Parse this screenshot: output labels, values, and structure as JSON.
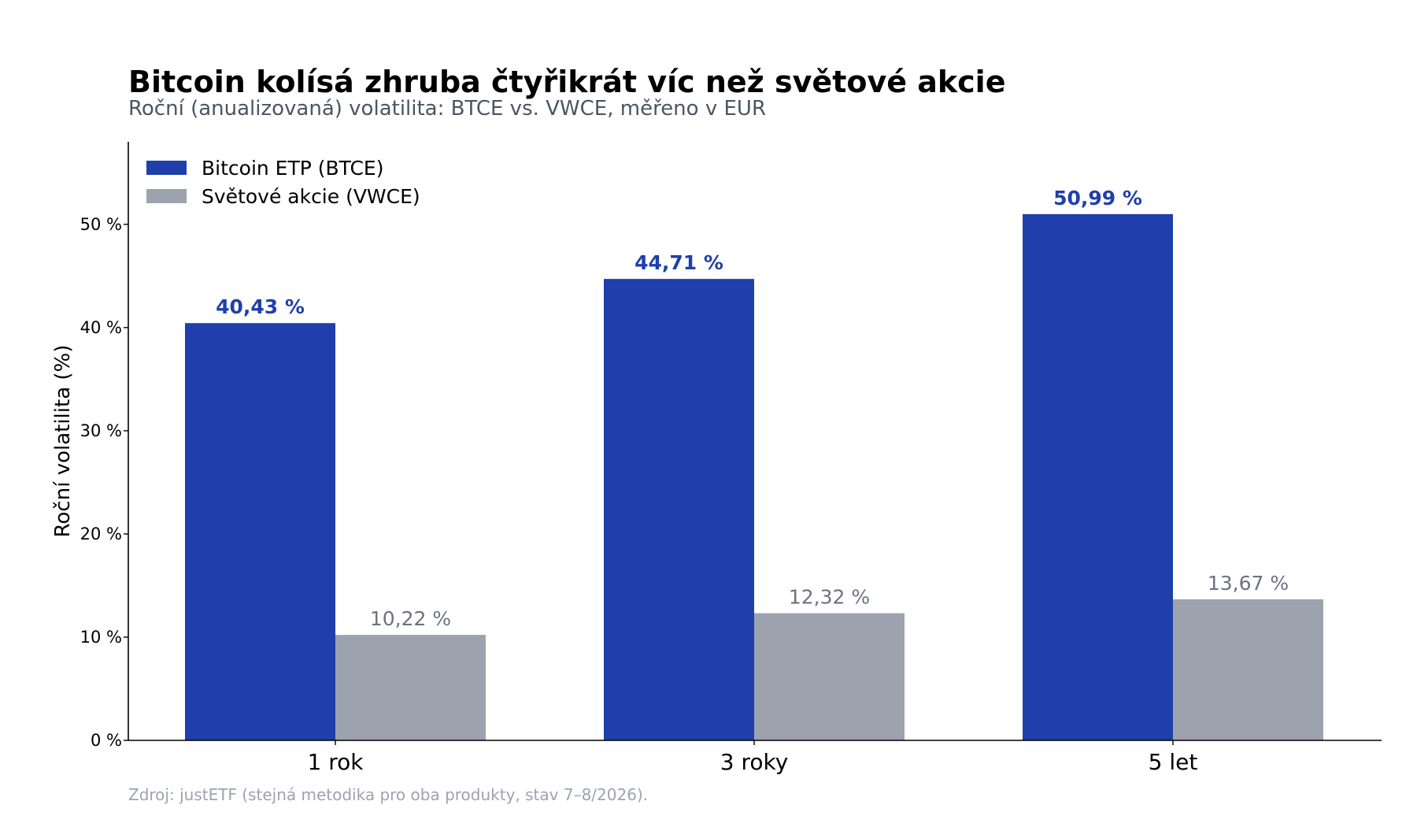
{
  "title": "Bitcoin kolísá zhruba čtyřikrát víc než světové akcie",
  "subtitle": "Roční (anualizovaná) volatilita: BTCE vs. VWCE, měřeno v EUR",
  "source": "Zdroj: justETF (stejná metodika pro oba produkty, stav 7–8/2026).",
  "chart_data": {
    "type": "bar",
    "categories": [
      "1 rok",
      "3 roky",
      "5 let"
    ],
    "ylabel": "Roční volatilita (%)",
    "ylim": [
      0,
      58
    ],
    "yticks": [
      {
        "value": 0,
        "label": "0 %"
      },
      {
        "value": 10,
        "label": "10 %"
      },
      {
        "value": 20,
        "label": "20 %"
      },
      {
        "value": 30,
        "label": "30 %"
      },
      {
        "value": 40,
        "label": "40 %"
      },
      {
        "value": 50,
        "label": "50 %"
      }
    ],
    "grid": false,
    "legend_position": "top-left",
    "series": [
      {
        "name": "Bitcoin ETP (BTCE)",
        "color": "#1f3fab",
        "values": [
          40.43,
          44.71,
          50.99
        ],
        "labels": [
          "40,43 %",
          "44,71 %",
          "50,99 %"
        ]
      },
      {
        "name": "Světové akcie (VWCE)",
        "color": "#9ca3ae",
        "values": [
          10.22,
          12.32,
          13.67
        ],
        "labels": [
          "10,22 %",
          "12,32 %",
          "13,67 %"
        ]
      }
    ],
    "label_colors": [
      "#1f3fab",
      "#6b7280"
    ]
  }
}
